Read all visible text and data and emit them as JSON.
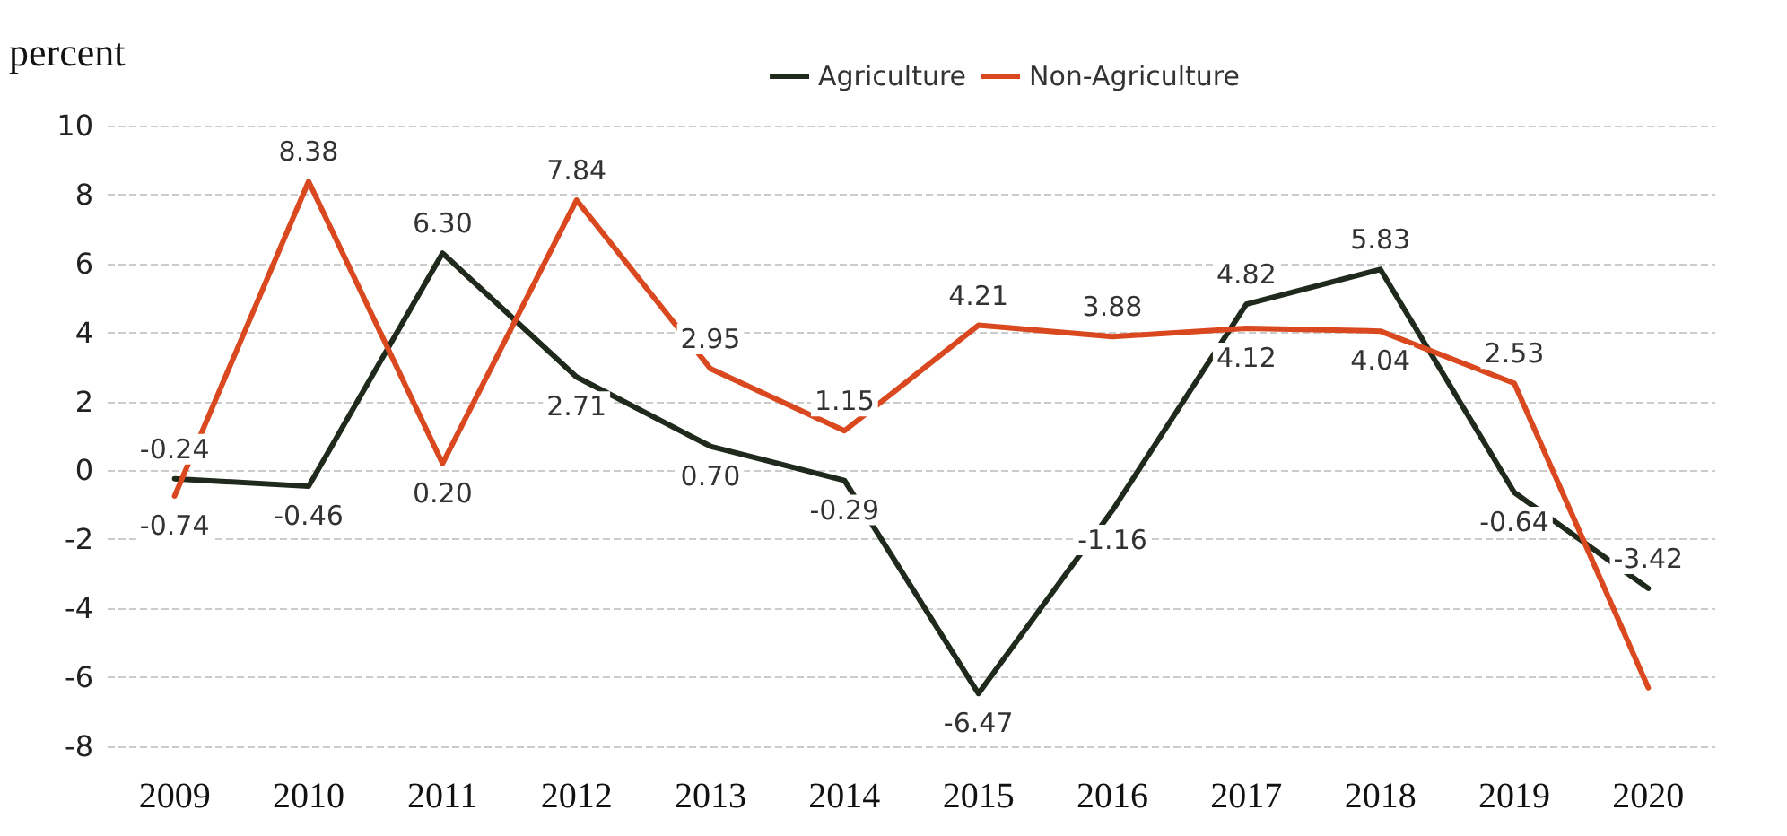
{
  "chart_data": {
    "type": "line",
    "ylabel": "percent",
    "categories": [
      "2009",
      "2010",
      "2011",
      "2012",
      "2013",
      "2014",
      "2015",
      "2016",
      "2017",
      "2018",
      "2019",
      "2020"
    ],
    "series": [
      {
        "name": "Agriculture",
        "color": "#1f2a1c",
        "values": [
          -0.24,
          -0.46,
          6.3,
          2.71,
          0.7,
          -0.29,
          -6.47,
          -1.16,
          4.82,
          5.83,
          -0.64,
          -3.42
        ],
        "value_labels": [
          "-0.24",
          "-0.46",
          "6.30",
          "2.71",
          "0.70",
          "-0.29",
          "-6.47",
          "-1.16",
          "4.82",
          "5.83",
          "-0.64",
          "-3.42"
        ]
      },
      {
        "name": "Non-Agriculture",
        "color": "#d9481f",
        "values": [
          -0.74,
          8.38,
          0.2,
          7.84,
          2.95,
          1.15,
          4.21,
          3.88,
          4.12,
          4.04,
          2.53,
          -6.3
        ],
        "value_labels": [
          "-0.74",
          "8.38",
          "0.20",
          "7.84",
          "2.95",
          "1.15",
          "4.21",
          "3.88",
          "4.12",
          "4.04",
          "2.53",
          null
        ]
      }
    ],
    "ylim": [
      -8,
      10
    ],
    "yticks": [
      -8,
      -6,
      -4,
      -2,
      0,
      2,
      4,
      6,
      8,
      10
    ],
    "grid": "y",
    "legend": "top right",
    "marker": "none",
    "line_style": "solid"
  }
}
